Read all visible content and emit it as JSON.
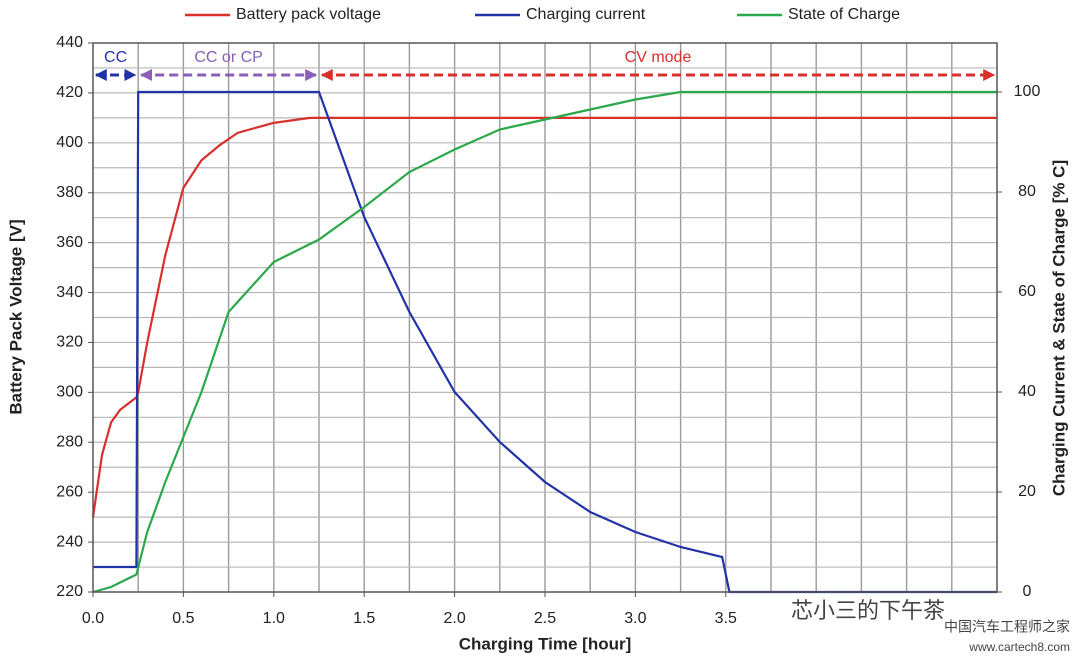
{
  "chart_data": {
    "type": "line",
    "xlabel": "Charging Time [hour]",
    "ylabel": "Battery Pack Voltage [V]",
    "y2label": "Charging Current & State of Charge [% C]",
    "xlim": [
      0,
      5
    ],
    "ylim": [
      220,
      440
    ],
    "y2lim": [
      0,
      109.8
    ],
    "xticks": [
      {
        "value": 0,
        "label": "0.0"
      },
      {
        "value": 0.5,
        "label": "0.5"
      },
      {
        "value": 1,
        "label": "1.0"
      },
      {
        "value": 1.5,
        "label": "1.5"
      },
      {
        "value": 2,
        "label": "2.0"
      },
      {
        "value": 2.5,
        "label": "2.5"
      },
      {
        "value": 3,
        "label": "3.0"
      },
      {
        "value": 3.5,
        "label": "3.5"
      }
    ],
    "xgrid": [
      0.25,
      0.5,
      0.75,
      1,
      1.25,
      1.5,
      1.75,
      2,
      2.25,
      2.5,
      2.75,
      3,
      3.25,
      3.5,
      3.75,
      4,
      4.25,
      4.5,
      4.75
    ],
    "yticks": [
      220,
      240,
      260,
      280,
      300,
      320,
      340,
      360,
      380,
      400,
      420,
      440
    ],
    "ygrid": [
      230,
      240,
      250,
      260,
      270,
      280,
      290,
      300,
      310,
      320,
      330,
      340,
      350,
      360,
      370,
      380,
      390,
      400,
      410,
      420,
      430
    ],
    "y2ticks": [
      0,
      20,
      40,
      60,
      80,
      100
    ],
    "grid": true,
    "legend": "top",
    "series": [
      {
        "name": "Battery pack voltage",
        "color": "#d8302c",
        "axis": "y",
        "x": [
          0,
          0.05,
          0.1,
          0.15,
          0.24,
          0.25,
          0.3,
          0.4,
          0.5,
          0.6,
          0.7,
          0.8,
          0.9,
          1.0,
          1.1,
          1.2,
          1.3,
          1.5,
          5.0
        ],
        "values": [
          250,
          275,
          288,
          293,
          298,
          300,
          320,
          355,
          382,
          393,
          399,
          404,
          406,
          408,
          409,
          410,
          410,
          410,
          410
        ]
      },
      {
        "name": "Charging current",
        "color": "#2233a8",
        "axis": "y2",
        "x": [
          0,
          0.24,
          0.25,
          1.25,
          1.5,
          1.75,
          2.0,
          2.25,
          2.5,
          2.75,
          3.0,
          3.25,
          3.48,
          3.52,
          5.0
        ],
        "values": [
          5,
          5,
          100,
          100,
          75,
          56,
          40,
          30,
          22,
          16,
          12,
          9,
          7,
          0,
          0
        ]
      },
      {
        "name": "State of Charge",
        "color": "#2aa84a",
        "axis": "y2",
        "x": [
          0,
          0.1,
          0.24,
          0.3,
          0.4,
          0.5,
          0.6,
          0.75,
          1.0,
          1.25,
          1.5,
          1.75,
          2.0,
          2.25,
          2.5,
          2.75,
          3.0,
          3.25,
          5.0
        ],
        "values": [
          0,
          1,
          3.5,
          12,
          22,
          31,
          40,
          56,
          66,
          70.5,
          77,
          84,
          88.5,
          92.5,
          94.5,
          96.5,
          98.5,
          100,
          100
        ]
      }
    ],
    "annotations": [
      {
        "text": "CC",
        "x": [
          0,
          0.25
        ],
        "color": "#2233a8"
      },
      {
        "text": "CC or CP",
        "x": [
          0.25,
          1.25
        ],
        "color": "#8a5fb8"
      },
      {
        "text": "CV mode",
        "x": [
          1.25,
          5.0
        ],
        "color": "#d8302c"
      }
    ],
    "watermark": [
      "芯小三的下午茶",
      "中国汽车工程师之家",
      "www.cartech8.com"
    ]
  }
}
